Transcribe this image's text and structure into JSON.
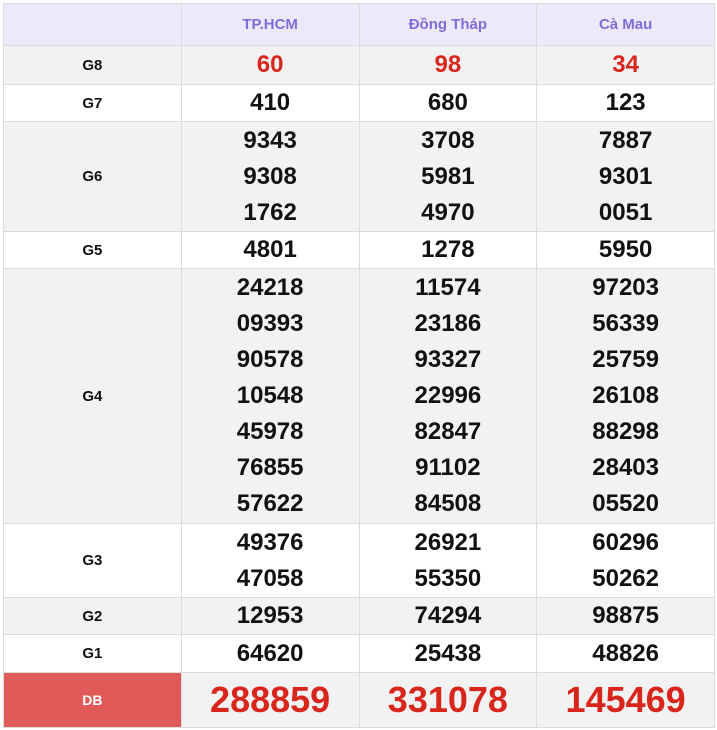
{
  "columns": [
    "TP.HCM",
    "Đồng Tháp",
    "Cà Mau"
  ],
  "rows": [
    {
      "label": "G8",
      "values": [
        [
          "60"
        ],
        [
          "98"
        ],
        [
          "34"
        ]
      ]
    },
    {
      "label": "G7",
      "values": [
        [
          "410"
        ],
        [
          "680"
        ],
        [
          "123"
        ]
      ]
    },
    {
      "label": "G6",
      "values": [
        [
          "9343",
          "9308",
          "1762"
        ],
        [
          "3708",
          "5981",
          "4970"
        ],
        [
          "7887",
          "9301",
          "0051"
        ]
      ]
    },
    {
      "label": "G5",
      "values": [
        [
          "4801"
        ],
        [
          "1278"
        ],
        [
          "5950"
        ]
      ]
    },
    {
      "label": "G4",
      "values": [
        [
          "24218",
          "09393",
          "90578",
          "10548",
          "45978",
          "76855",
          "57622"
        ],
        [
          "11574",
          "23186",
          "93327",
          "22996",
          "82847",
          "91102",
          "84508"
        ],
        [
          "97203",
          "56339",
          "25759",
          "26108",
          "88298",
          "28403",
          "05520"
        ]
      ]
    },
    {
      "label": "G3",
      "values": [
        [
          "49376",
          "47058"
        ],
        [
          "26921",
          "55350"
        ],
        [
          "60296",
          "50262"
        ]
      ]
    },
    {
      "label": "G2",
      "values": [
        [
          "12953"
        ],
        [
          "74294"
        ],
        [
          "98875"
        ]
      ]
    },
    {
      "label": "G1",
      "values": [
        [
          "64620"
        ],
        [
          "25438"
        ],
        [
          "48826"
        ]
      ]
    },
    {
      "label": "DB",
      "values": [
        [
          "288859"
        ],
        [
          "331078"
        ],
        [
          "145469"
        ]
      ]
    }
  ],
  "colors": {
    "header_bg": "#ede9fb",
    "header_text": "#7b6fd8",
    "prize_red": "#d9261c",
    "db_label_bg": "#e05a5a"
  }
}
